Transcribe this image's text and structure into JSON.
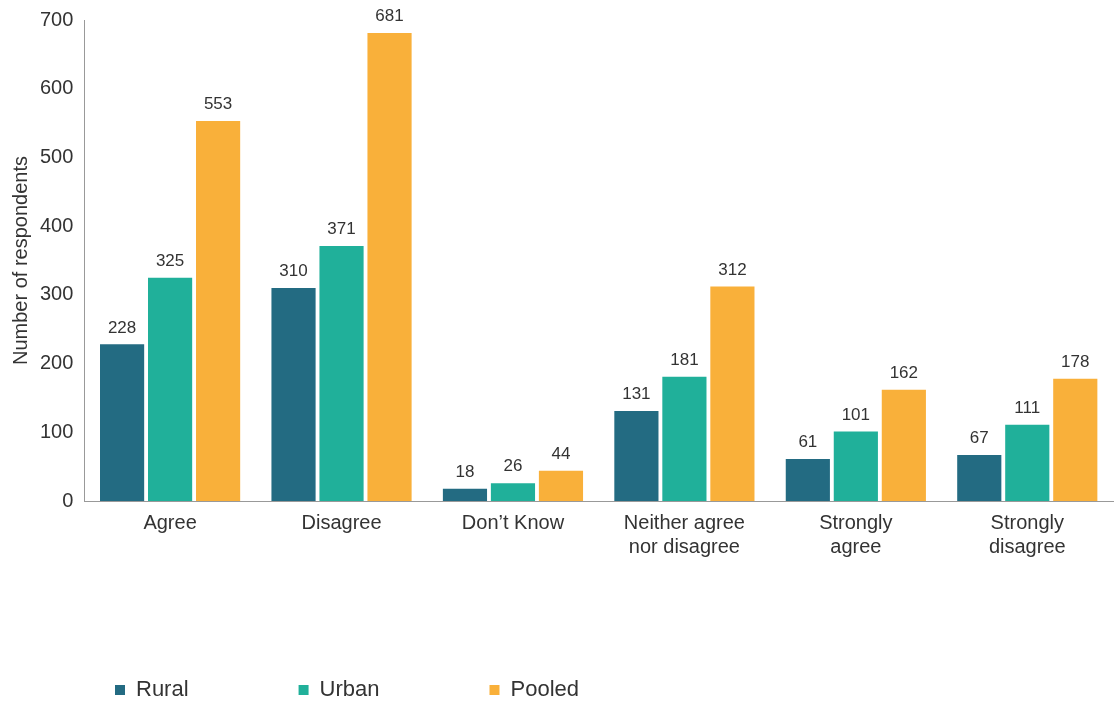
{
  "chart_data": {
    "type": "bar",
    "ylabel": "Number of respondents",
    "categories": [
      "Agree",
      "Disagree",
      "Don’t Know",
      "Neither agree nor disagree",
      "Strongly agree",
      "Strongly disagree"
    ],
    "series": [
      {
        "name": "Rural",
        "color": "#236b82",
        "values": [
          228,
          310,
          18,
          131,
          61,
          67
        ]
      },
      {
        "name": "Urban",
        "color": "#20b09a",
        "values": [
          325,
          371,
          26,
          181,
          101,
          111
        ]
      },
      {
        "name": "Pooled",
        "color": "#f9b03a",
        "values": [
          553,
          681,
          44,
          312,
          162,
          178
        ]
      }
    ],
    "ylim": [
      0,
      700
    ],
    "yticks": [
      0,
      100,
      200,
      300,
      400,
      500,
      600,
      700
    ],
    "grid": false,
    "legend": "bottom left",
    "data_labels": true
  }
}
